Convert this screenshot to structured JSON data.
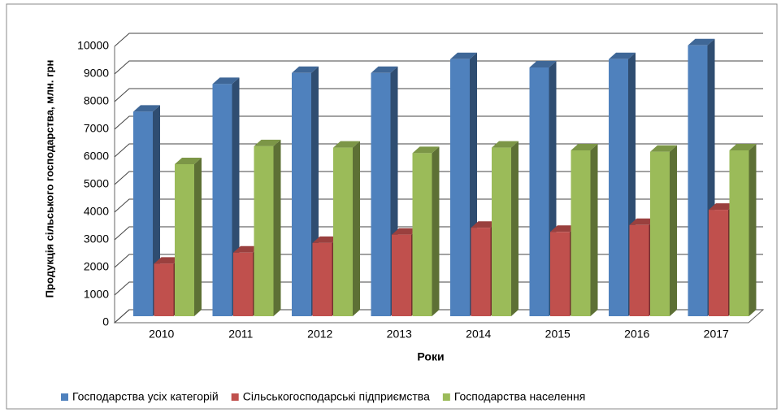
{
  "chart_data": {
    "type": "bar3d",
    "y_label": "Продукція сільського господарства, млн. грн",
    "x_label": "Роки",
    "categories": [
      "2010",
      "2011",
      "2012",
      "2013",
      "2014",
      "2015",
      "2016",
      "2017"
    ],
    "series": [
      {
        "name": "Господарства усіх категорій",
        "color": "#4f81bd",
        "values": [
          7400,
          8400,
          8800,
          8800,
          9300,
          9000,
          9300,
          9800
        ]
      },
      {
        "name": "Сільськогосподарські підприємства",
        "color": "#c0504d",
        "values": [
          1900,
          2300,
          2650,
          2950,
          3200,
          3050,
          3300,
          3850
        ]
      },
      {
        "name": "Господарства населення",
        "color": "#9bbb59",
        "values": [
          5500,
          6150,
          6100,
          5900,
          6100,
          6000,
          5950,
          6000
        ]
      }
    ],
    "ylim": [
      0,
      10000
    ],
    "yticks": [
      0,
      1000,
      2000,
      3000,
      4000,
      5000,
      6000,
      7000,
      8000,
      9000,
      10000
    ],
    "grid": true
  }
}
